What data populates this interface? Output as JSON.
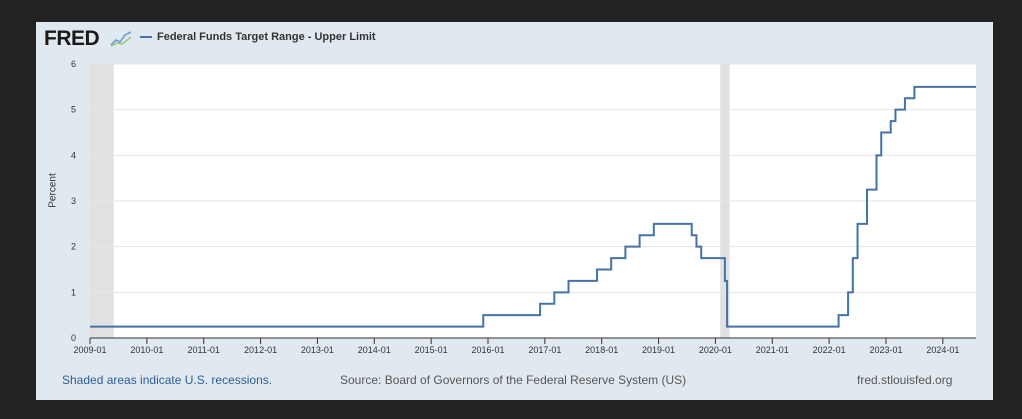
{
  "logo": {
    "text": "FRED",
    "mark_icon": "fred-chart-icon"
  },
  "footer": {
    "recession_note": "Shaded areas indicate U.S. recessions.",
    "source": "Source: Board of Governors of the Federal Reserve System (US)",
    "site": "fred.stlouisfed.org"
  },
  "colors": {
    "series": "#4572a7",
    "recession": "#e1e1e1",
    "plot_bg": "#ffffff",
    "panel": "#e1e9f0"
  },
  "chart_data": {
    "type": "line",
    "title": "",
    "xlabel": "",
    "ylabel": "Percent",
    "xlim": [
      "2009-01",
      "2024-08"
    ],
    "ylim": [
      0,
      6
    ],
    "y_ticks": [
      0,
      1,
      2,
      3,
      4,
      5,
      6
    ],
    "x_ticks": [
      "2009-01",
      "2010-01",
      "2011-01",
      "2012-01",
      "2013-01",
      "2014-01",
      "2015-01",
      "2016-01",
      "2017-01",
      "2018-01",
      "2019-01",
      "2020-01",
      "2021-01",
      "2022-01",
      "2023-01",
      "2024-01"
    ],
    "grid": true,
    "legend": "top-left",
    "recessions": [
      [
        "2009-01",
        "2009-06"
      ],
      [
        "2020-02",
        "2020-04"
      ]
    ],
    "series": [
      {
        "name": "Federal Funds Target Range - Upper Limit",
        "step": true,
        "x": [
          "2009-01",
          "2015-12",
          "2016-12",
          "2017-03",
          "2017-06",
          "2017-12",
          "2018-03",
          "2018-06",
          "2018-09",
          "2018-12",
          "2019-08",
          "2019-09",
          "2019-10",
          "2020-03",
          "2020-03-15",
          "2022-03",
          "2022-05",
          "2022-06",
          "2022-07",
          "2022-09",
          "2022-11",
          "2022-12",
          "2023-02",
          "2023-03",
          "2023-05",
          "2023-07",
          "2024-08"
        ],
        "values": [
          0.25,
          0.5,
          0.75,
          1.0,
          1.25,
          1.5,
          1.75,
          2.0,
          2.25,
          2.5,
          2.25,
          2.0,
          1.75,
          1.25,
          0.25,
          0.5,
          1.0,
          1.75,
          2.5,
          3.25,
          4.0,
          4.5,
          4.75,
          5.0,
          5.25,
          5.5,
          5.5
        ]
      }
    ]
  }
}
